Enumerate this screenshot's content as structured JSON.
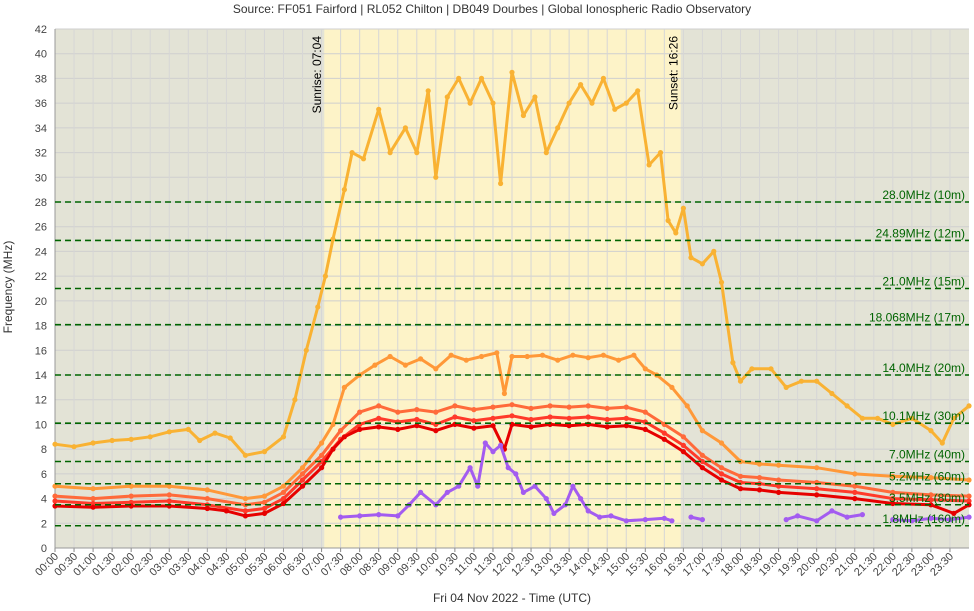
{
  "chart_data": {
    "type": "line",
    "title": "Source: FF051 Fairford | RL052 Chilton | DB049 Dourbes | Global Ionospheric Radio Observatory",
    "xlabel": "Fri 04 Nov 2022 - Time (UTC)",
    "ylabel": "Frequency (MHz)",
    "ylim": [
      0,
      42
    ],
    "xlim": [
      0,
      24
    ],
    "y_ticks": [
      0,
      2,
      4,
      6,
      8,
      10,
      12,
      14,
      16,
      18,
      20,
      22,
      24,
      26,
      28,
      30,
      32,
      34,
      36,
      38,
      40,
      42
    ],
    "x_tick_labels": [
      "00:00",
      "00:30",
      "01:00",
      "01:30",
      "02:00",
      "02:30",
      "03:00",
      "03:30",
      "04:00",
      "04:30",
      "05:00",
      "05:30",
      "06:00",
      "06:30",
      "07:00",
      "07:30",
      "08:00",
      "08:30",
      "09:00",
      "09:30",
      "10:00",
      "10:30",
      "11:00",
      "11:30",
      "12:00",
      "12:30",
      "13:00",
      "13:30",
      "14:00",
      "14:30",
      "15:00",
      "15:30",
      "16:00",
      "16:30",
      "17:00",
      "17:30",
      "18:00",
      "18:30",
      "19:00",
      "19:30",
      "20:00",
      "20:30",
      "21:00",
      "21:30",
      "22:00",
      "22:30",
      "23:00",
      "23:30"
    ],
    "grid": true,
    "daylight": {
      "start": 7.07,
      "end": 16.43,
      "sunrise_label": "Sunrise: 07:04",
      "sunset_label": "Sunset: 16:26"
    },
    "bands": [
      {
        "label": "28.0MHz (10m)",
        "value": 28.0
      },
      {
        "label": "24.89MHz (12m)",
        "value": 24.89
      },
      {
        "label": "21.0MHz (15m)",
        "value": 21.0
      },
      {
        "label": "18.068MHz (17m)",
        "value": 18.068
      },
      {
        "label": "14.0MHz (20m)",
        "value": 14.0
      },
      {
        "label": "10.1MHz (30m)",
        "value": 10.1
      },
      {
        "label": "7.0MHz (40m)",
        "value": 7.0
      },
      {
        "label": "5.2MHz (60m)",
        "value": 5.2
      },
      {
        "label": "3.5MHz (80m)",
        "value": 3.5
      },
      {
        "label": "1.8MHz (160m)",
        "value": 1.8
      }
    ],
    "series": [
      {
        "color": "#f9b233",
        "points": [
          [
            0,
            8.4
          ],
          [
            0.5,
            8.2
          ],
          [
            1,
            8.5
          ],
          [
            1.5,
            8.7
          ],
          [
            2,
            8.8
          ],
          [
            2.5,
            9.0
          ],
          [
            3,
            9.4
          ],
          [
            3.5,
            9.6
          ],
          [
            3.8,
            8.7
          ],
          [
            4.2,
            9.3
          ],
          [
            4.6,
            8.9
          ],
          [
            5,
            7.5
          ],
          [
            5.5,
            7.8
          ],
          [
            6,
            9.0
          ],
          [
            6.3,
            12.0
          ],
          [
            6.6,
            16.0
          ],
          [
            6.9,
            19.5
          ],
          [
            7.1,
            22.0
          ],
          [
            7.3,
            25.0
          ],
          [
            7.6,
            29.0
          ],
          [
            7.8,
            32.0
          ],
          [
            8.1,
            31.5
          ],
          [
            8.5,
            35.5
          ],
          [
            8.8,
            32.0
          ],
          [
            9.2,
            34.0
          ],
          [
            9.5,
            32.0
          ],
          [
            9.8,
            37.0
          ],
          [
            10.0,
            30.0
          ],
          [
            10.3,
            36.5
          ],
          [
            10.6,
            38.0
          ],
          [
            10.9,
            36.0
          ],
          [
            11.2,
            38.0
          ],
          [
            11.5,
            36.0
          ],
          [
            11.7,
            29.5
          ],
          [
            12.0,
            38.5
          ],
          [
            12.3,
            35.0
          ],
          [
            12.6,
            36.5
          ],
          [
            12.9,
            32.0
          ],
          [
            13.2,
            34.0
          ],
          [
            13.5,
            36.0
          ],
          [
            13.8,
            37.5
          ],
          [
            14.1,
            36.0
          ],
          [
            14.4,
            38.0
          ],
          [
            14.7,
            35.5
          ],
          [
            15.0,
            36.0
          ],
          [
            15.3,
            37.0
          ],
          [
            15.6,
            31.0
          ],
          [
            15.9,
            32.0
          ],
          [
            16.1,
            26.5
          ],
          [
            16.3,
            25.5
          ],
          [
            16.5,
            27.5
          ],
          [
            16.7,
            23.5
          ],
          [
            17.0,
            23.0
          ],
          [
            17.3,
            24.0
          ],
          [
            17.5,
            21.5
          ],
          [
            17.8,
            15.0
          ],
          [
            18.0,
            13.5
          ],
          [
            18.3,
            14.5
          ],
          [
            18.8,
            14.5
          ],
          [
            19.2,
            13.0
          ],
          [
            19.6,
            13.5
          ],
          [
            20.0,
            13.5
          ],
          [
            20.4,
            12.5
          ],
          [
            20.8,
            11.5
          ],
          [
            21.2,
            10.5
          ],
          [
            21.6,
            10.5
          ],
          [
            22.0,
            10.0
          ],
          [
            22.5,
            10.5
          ],
          [
            23.0,
            9.5
          ],
          [
            23.3,
            8.5
          ],
          [
            23.6,
            10.5
          ],
          [
            24,
            11.5
          ]
        ]
      },
      {
        "color": "#ff9838",
        "points": [
          [
            0,
            5.0
          ],
          [
            1,
            4.8
          ],
          [
            2,
            5.0
          ],
          [
            3,
            5.0
          ],
          [
            4,
            4.7
          ],
          [
            5,
            4.0
          ],
          [
            5.5,
            4.2
          ],
          [
            6,
            5.0
          ],
          [
            6.5,
            6.5
          ],
          [
            7,
            8.5
          ],
          [
            7.3,
            10.0
          ],
          [
            7.6,
            13.0
          ],
          [
            8,
            14.0
          ],
          [
            8.4,
            14.8
          ],
          [
            8.8,
            15.5
          ],
          [
            9.2,
            14.8
          ],
          [
            9.6,
            15.3
          ],
          [
            10,
            14.5
          ],
          [
            10.4,
            15.6
          ],
          [
            10.8,
            15.2
          ],
          [
            11.2,
            15.5
          ],
          [
            11.6,
            15.8
          ],
          [
            11.8,
            12.5
          ],
          [
            12.0,
            15.5
          ],
          [
            12.4,
            15.5
          ],
          [
            12.8,
            15.6
          ],
          [
            13.2,
            15.2
          ],
          [
            13.6,
            15.6
          ],
          [
            14.0,
            15.4
          ],
          [
            14.4,
            15.6
          ],
          [
            14.8,
            15.2
          ],
          [
            15.2,
            15.6
          ],
          [
            15.5,
            14.5
          ],
          [
            15.8,
            14.0
          ],
          [
            16.2,
            13.0
          ],
          [
            16.6,
            11.5
          ],
          [
            17.0,
            9.5
          ],
          [
            17.5,
            8.5
          ],
          [
            18,
            7.0
          ],
          [
            18.5,
            6.8
          ],
          [
            19,
            6.7
          ],
          [
            20,
            6.5
          ],
          [
            21,
            6.0
          ],
          [
            22,
            5.8
          ],
          [
            23,
            5.7
          ],
          [
            24,
            5.5
          ]
        ]
      },
      {
        "color": "#ff6a3a",
        "points": [
          [
            0,
            4.2
          ],
          [
            1,
            4.0
          ],
          [
            2,
            4.2
          ],
          [
            3,
            4.3
          ],
          [
            4,
            4.0
          ],
          [
            5,
            3.5
          ],
          [
            5.5,
            3.7
          ],
          [
            6,
            4.5
          ],
          [
            6.5,
            6.0
          ],
          [
            7,
            7.5
          ],
          [
            7.5,
            9.5
          ],
          [
            8,
            11.0
          ],
          [
            8.5,
            11.5
          ],
          [
            9,
            11.0
          ],
          [
            9.5,
            11.2
          ],
          [
            10,
            11.0
          ],
          [
            10.5,
            11.5
          ],
          [
            11,
            11.2
          ],
          [
            11.5,
            11.4
          ],
          [
            12,
            11.6
          ],
          [
            12.5,
            11.3
          ],
          [
            13,
            11.5
          ],
          [
            13.5,
            11.4
          ],
          [
            14,
            11.5
          ],
          [
            14.5,
            11.3
          ],
          [
            15,
            11.4
          ],
          [
            15.5,
            11.0
          ],
          [
            16,
            10.0
          ],
          [
            16.5,
            9.0
          ],
          [
            17,
            7.5
          ],
          [
            17.5,
            6.5
          ],
          [
            18,
            5.8
          ],
          [
            18.5,
            5.7
          ],
          [
            19,
            5.5
          ],
          [
            20,
            5.3
          ],
          [
            21,
            5.0
          ],
          [
            22,
            4.5
          ],
          [
            23,
            4.3
          ],
          [
            24,
            4.2
          ]
        ]
      },
      {
        "color": "#ff3a2a",
        "points": [
          [
            0,
            3.8
          ],
          [
            1,
            3.6
          ],
          [
            2,
            3.7
          ],
          [
            3,
            3.8
          ],
          [
            4,
            3.5
          ],
          [
            5,
            3.0
          ],
          [
            5.5,
            3.2
          ],
          [
            6,
            4.0
          ],
          [
            6.5,
            5.5
          ],
          [
            7,
            7.0
          ],
          [
            7.5,
            8.8
          ],
          [
            8,
            10.0
          ],
          [
            8.5,
            10.5
          ],
          [
            9,
            10.2
          ],
          [
            9.5,
            10.4
          ],
          [
            10,
            10.0
          ],
          [
            10.5,
            10.6
          ],
          [
            11,
            10.3
          ],
          [
            11.5,
            10.5
          ],
          [
            12,
            10.7
          ],
          [
            12.5,
            10.4
          ],
          [
            13,
            10.6
          ],
          [
            13.5,
            10.5
          ],
          [
            14,
            10.6
          ],
          [
            14.5,
            10.4
          ],
          [
            15,
            10.5
          ],
          [
            15.5,
            10.2
          ],
          [
            16,
            9.3
          ],
          [
            16.5,
            8.3
          ],
          [
            17,
            7.0
          ],
          [
            17.5,
            6.0
          ],
          [
            18,
            5.3
          ],
          [
            18.5,
            5.2
          ],
          [
            19,
            5.0
          ],
          [
            20,
            4.8
          ],
          [
            21,
            4.5
          ],
          [
            22,
            4.0
          ],
          [
            23,
            3.9
          ],
          [
            24,
            3.8
          ]
        ]
      },
      {
        "color": "#e60000",
        "points": [
          [
            0,
            3.4
          ],
          [
            1,
            3.3
          ],
          [
            2,
            3.4
          ],
          [
            3,
            3.4
          ],
          [
            4,
            3.2
          ],
          [
            4.5,
            3.0
          ],
          [
            5,
            2.6
          ],
          [
            5.5,
            2.8
          ],
          [
            6,
            3.6
          ],
          [
            6.5,
            5.0
          ],
          [
            7,
            6.5
          ],
          [
            7.3,
            8.0
          ],
          [
            7.6,
            9.0
          ],
          [
            8,
            9.6
          ],
          [
            8.5,
            9.8
          ],
          [
            9,
            9.6
          ],
          [
            9.5,
            9.9
          ],
          [
            10,
            9.5
          ],
          [
            10.5,
            10.0
          ],
          [
            11,
            9.7
          ],
          [
            11.5,
            9.9
          ],
          [
            11.8,
            8.0
          ],
          [
            12,
            10.0
          ],
          [
            12.5,
            9.8
          ],
          [
            13,
            10.0
          ],
          [
            13.5,
            9.9
          ],
          [
            14,
            10.0
          ],
          [
            14.5,
            9.8
          ],
          [
            15,
            9.9
          ],
          [
            15.5,
            9.6
          ],
          [
            16,
            8.8
          ],
          [
            16.5,
            7.8
          ],
          [
            17,
            6.5
          ],
          [
            17.5,
            5.5
          ],
          [
            18,
            4.8
          ],
          [
            18.5,
            4.7
          ],
          [
            19,
            4.5
          ],
          [
            20,
            4.3
          ],
          [
            21,
            4.0
          ],
          [
            22,
            3.6
          ],
          [
            23,
            3.5
          ],
          [
            23.6,
            2.8
          ],
          [
            24,
            3.5
          ]
        ]
      },
      {
        "color": "#a35cf0",
        "points": [
          [
            7.5,
            2.5
          ],
          [
            8,
            2.6
          ],
          [
            8.5,
            2.7
          ],
          [
            9,
            2.6
          ],
          [
            9.3,
            3.5
          ],
          [
            9.6,
            4.5
          ],
          [
            10,
            3.5
          ],
          [
            10.3,
            4.5
          ],
          [
            10.6,
            5.0
          ],
          [
            10.9,
            6.5
          ],
          [
            11.1,
            5.0
          ],
          [
            11.3,
            8.5
          ],
          [
            11.5,
            7.8
          ],
          [
            11.7,
            8.3
          ],
          [
            11.9,
            6.5
          ],
          [
            12.1,
            6.0
          ],
          [
            12.3,
            4.5
          ],
          [
            12.6,
            5.0
          ],
          [
            12.9,
            4.0
          ],
          [
            13.1,
            2.8
          ],
          [
            13.4,
            3.5
          ],
          [
            13.6,
            5.0
          ],
          [
            13.8,
            4.0
          ],
          [
            14.0,
            3.0
          ],
          [
            14.3,
            2.5
          ],
          [
            14.6,
            2.6
          ],
          [
            15.0,
            2.2
          ],
          [
            15.5,
            2.3
          ],
          [
            16.0,
            2.4
          ],
          [
            16.2,
            2.2
          ]
        ]
      },
      {
        "color": "#a35cf0",
        "points": [
          [
            16.7,
            2.5
          ],
          [
            17.0,
            2.3
          ]
        ]
      },
      {
        "color": "#a35cf0",
        "points": [
          [
            19.2,
            2.3
          ],
          [
            19.5,
            2.6
          ],
          [
            20.0,
            2.2
          ],
          [
            20.4,
            3.0
          ],
          [
            20.8,
            2.5
          ],
          [
            21.2,
            2.7
          ]
        ]
      },
      {
        "color": "#a35cf0",
        "points": [
          [
            22.0,
            2.3
          ],
          [
            22.5,
            2.2
          ],
          [
            23.0,
            2.4
          ],
          [
            23.5,
            2.3
          ],
          [
            24,
            2.5
          ]
        ]
      }
    ]
  }
}
